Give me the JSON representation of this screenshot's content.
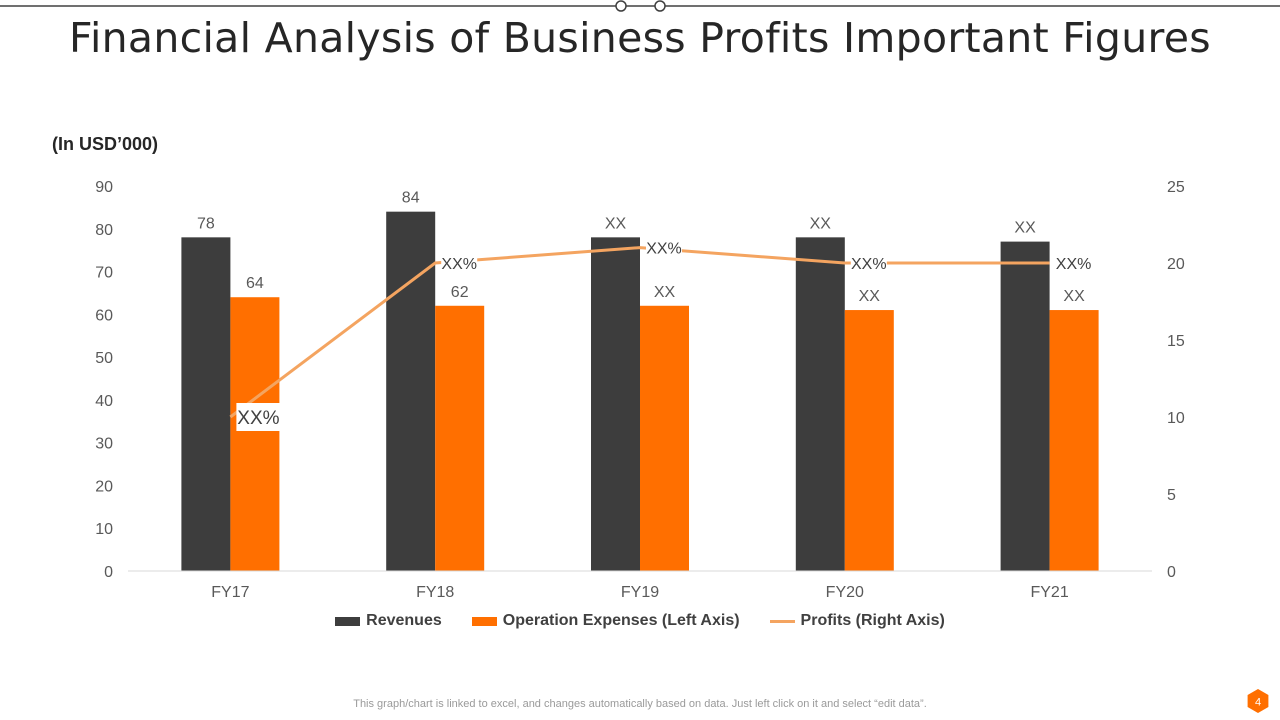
{
  "header": {
    "title": "Financial Analysis of Business Profits Important Figures",
    "unit_label": "(In USD’000)"
  },
  "chart_data": {
    "type": "bar",
    "title": "Financial Analysis of Business Profits Important Figures",
    "categories": [
      "FY17",
      "FY18",
      "FY19",
      "FY20",
      "FY21"
    ],
    "series": [
      {
        "name": "Revenues",
        "type": "bar",
        "axis": "left",
        "values": [
          78,
          84,
          78,
          78,
          77
        ],
        "labels": [
          "78",
          "84",
          "XX",
          "XX",
          "XX"
        ],
        "color": "#3d3d3d"
      },
      {
        "name": "Operation Expenses (Left Axis)",
        "type": "bar",
        "axis": "left",
        "values": [
          64,
          62,
          62,
          61,
          61
        ],
        "labels": [
          "64",
          "62",
          "XX",
          "XX",
          "XX"
        ],
        "color": "#ff6f00"
      },
      {
        "name": "Profits (Right Axis)",
        "type": "line",
        "axis": "right",
        "values": [
          10,
          20,
          21,
          20,
          20
        ],
        "labels": [
          "XX%",
          "XX%",
          "XX%",
          "XX%",
          "XX%"
        ],
        "color": "#f4a460"
      }
    ],
    "y_left": {
      "min": 0,
      "max": 90,
      "ticks": [
        0,
        10,
        20,
        30,
        40,
        50,
        60,
        70,
        80,
        90
      ]
    },
    "y_right": {
      "min": 0,
      "max": 25,
      "ticks": [
        0,
        5,
        10,
        15,
        20,
        25
      ]
    },
    "ylabel": "(In USD’000)",
    "legend_position": "bottom",
    "grid": false
  },
  "footer": {
    "note": "This graph/chart is linked to excel,  and changes automatically based on data. Just left click on it and select “edit data”.",
    "page_number": "4"
  },
  "colors": {
    "accent": "#ff6f00",
    "dark": "#3d3d3d",
    "line": "#f4a460"
  }
}
